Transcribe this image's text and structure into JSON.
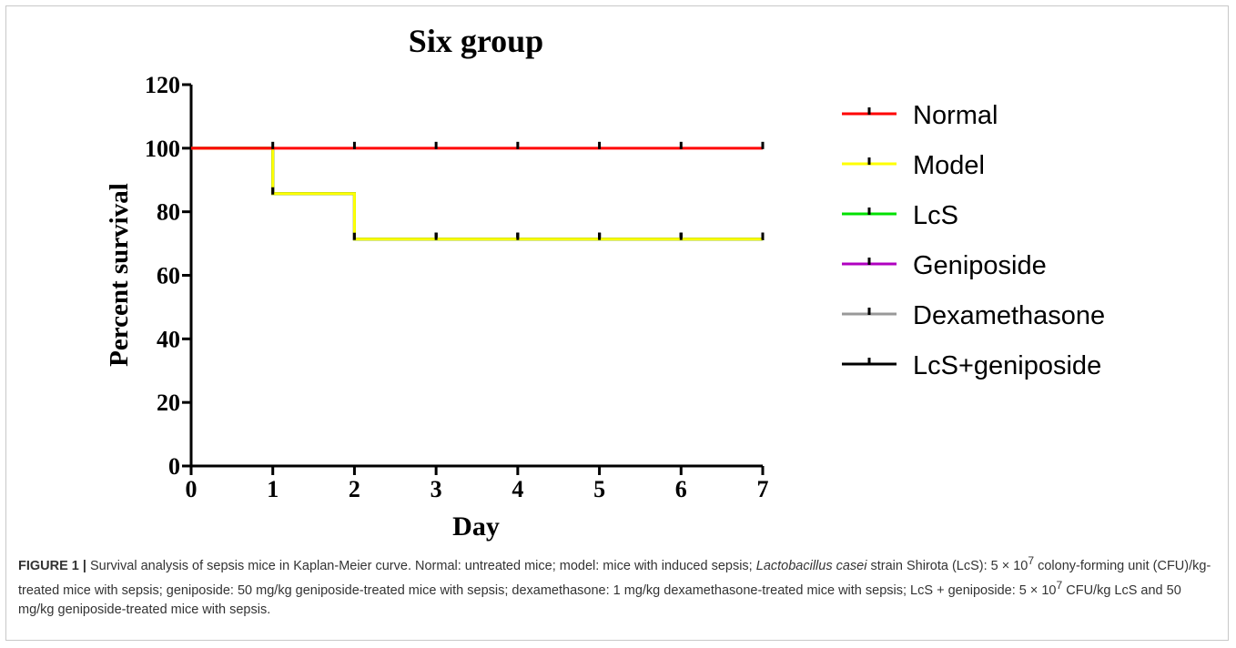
{
  "chart_data": {
    "type": "line",
    "step": true,
    "title": "Six group",
    "xlabel": "Day",
    "ylabel": "Percent survival",
    "xlim": [
      0,
      7
    ],
    "ylim": [
      0,
      120
    ],
    "x_ticks": [
      "0",
      "1",
      "2",
      "3",
      "4",
      "5",
      "6",
      "7"
    ],
    "y_ticks": [
      "0",
      "20",
      "40",
      "60",
      "80",
      "100",
      "120"
    ],
    "legend_position": "right",
    "series": [
      {
        "name": "Normal",
        "color": "#ff0000",
        "x": [
          0,
          1,
          2,
          3,
          4,
          5,
          6,
          7
        ],
        "y": [
          100,
          100,
          100,
          100,
          100,
          100,
          100,
          100
        ]
      },
      {
        "name": "Model",
        "color": "#ffff00",
        "x": [
          0,
          1,
          2,
          3,
          4,
          5,
          6,
          7
        ],
        "y": [
          100,
          85.7,
          71.4,
          71.4,
          71.4,
          71.4,
          71.4,
          71.4
        ]
      },
      {
        "name": "LcS",
        "color": "#00e000",
        "x": [
          0,
          1,
          2,
          3,
          4,
          5,
          6,
          7
        ],
        "y": [
          100,
          85.7,
          71.4,
          71.4,
          71.4,
          71.4,
          71.4,
          71.4
        ]
      },
      {
        "name": "Geniposide",
        "color": "#b000c0",
        "x": [
          0,
          1,
          2,
          3,
          4,
          5,
          6,
          7
        ],
        "y": [
          100,
          85.7,
          71.4,
          71.4,
          71.4,
          71.4,
          71.4,
          71.4
        ]
      },
      {
        "name": "Dexamethasone",
        "color": "#999999",
        "x": [
          0,
          1,
          2,
          3,
          4,
          5,
          6,
          7
        ],
        "y": [
          100,
          85.7,
          71.4,
          71.4,
          71.4,
          71.4,
          71.4,
          71.4
        ]
      },
      {
        "name": "LcS+geniposide",
        "color": "#000000",
        "x": [
          0,
          1,
          2,
          3,
          4,
          5,
          6,
          7
        ],
        "y": [
          100,
          85.7,
          71.4,
          71.4,
          71.4,
          71.4,
          71.4,
          71.4
        ]
      }
    ]
  },
  "caption": {
    "label": "FIGURE 1 |",
    "part1": " Survival analysis of sepsis mice in Kaplan-Meier curve. Normal: untreated mice; model: mice with induced sepsis; ",
    "species": "Lactobacillus casei",
    "part2": " strain Shirota (LcS): 5 × 10",
    "exp1": "7",
    "part3": " colony-forming unit (CFU)/kg-treated mice with sepsis; geniposide: 50 mg/kg geniposide-treated mice with sepsis; dexamethasone: 1 mg/kg dexamethasone-treated mice with sepsis; LcS + geniposide: 5 × 10",
    "exp2": "7",
    "part4": " CFU/kg LcS and 50 mg/kg geniposide-treated mice with sepsis."
  }
}
